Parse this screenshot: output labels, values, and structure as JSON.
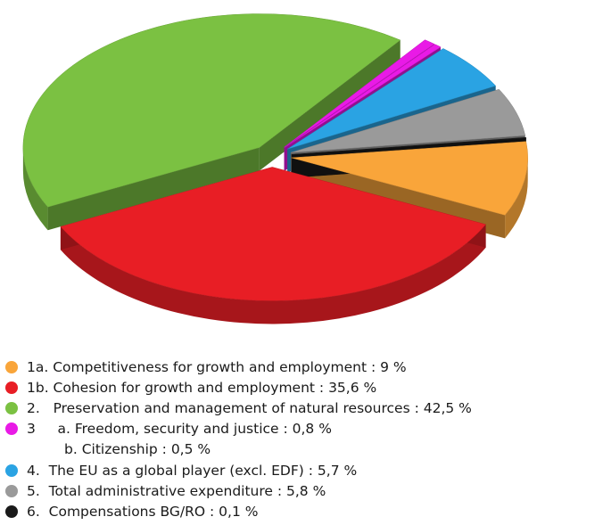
{
  "chart_data": {
    "type": "pie",
    "style": "3d-exploded",
    "slices": [
      {
        "label": "1a. Competitiveness for growth and employment : 9 %",
        "value": 9,
        "color": "#f9a53a"
      },
      {
        "label": "1b. Cohesion for growth and employment : 35,6 %",
        "value": 35.6,
        "color": "#e81e25"
      },
      {
        "label": "2.   Preservation and management of natural resources : 42,5 %",
        "value": 42.5,
        "color": "#7bc142"
      },
      {
        "label": "3     a. Freedom, security and justice : 0,8 %",
        "value": 0.8,
        "color": "#e91ae6"
      },
      {
        "label": "b. Citizenship : 0,5 %",
        "value": 0.5,
        "color": "#e91ae6"
      },
      {
        "label": "4.  The EU as a global player (excl. EDF) : 5,7 %",
        "value": 5.7,
        "color": "#2aa3e3"
      },
      {
        "label": "5.  Total administrative expenditure : 5,8 %",
        "value": 5.8,
        "color": "#9a9a9a"
      },
      {
        "label": "6.  Compensations BG/RO : 0,1 %",
        "value": 0.1,
        "color": "#1a1a1a"
      }
    ],
    "legend_position": "bottom"
  }
}
